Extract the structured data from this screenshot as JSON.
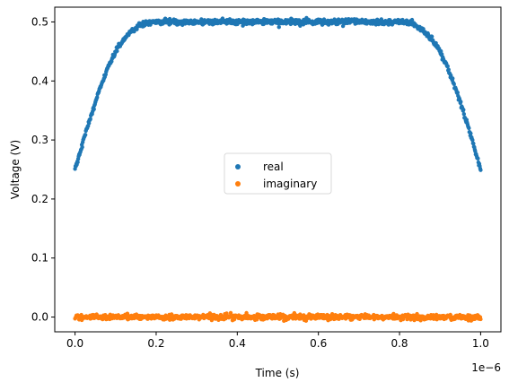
{
  "chart_data": {
    "type": "scatter",
    "title": "",
    "xlabel": "Time (s)",
    "ylabel": "Voltage (V)",
    "x_offset_label": "1e−6",
    "xlim": [
      -0.05,
      1.05
    ],
    "ylim": [
      -0.025,
      0.525
    ],
    "x_ticks": [
      {
        "value": 0.0,
        "label": "0.0"
      },
      {
        "value": 0.2,
        "label": "0.2"
      },
      {
        "value": 0.4,
        "label": "0.4"
      },
      {
        "value": 0.6,
        "label": "0.6"
      },
      {
        "value": 0.8,
        "label": "0.8"
      },
      {
        "value": 1.0,
        "label": "1.0"
      }
    ],
    "y_ticks": [
      {
        "value": 0.0,
        "label": "0.0"
      },
      {
        "value": 0.1,
        "label": "0.1"
      },
      {
        "value": 0.2,
        "label": "0.2"
      },
      {
        "value": 0.3,
        "label": "0.3"
      },
      {
        "value": 0.4,
        "label": "0.4"
      },
      {
        "value": 0.5,
        "label": "0.5"
      }
    ],
    "grid": false,
    "legend_position": "center",
    "series": [
      {
        "name": "real",
        "color": "#1f77b4",
        "x": [
          0.0,
          0.02,
          0.04,
          0.06,
          0.08,
          0.1,
          0.12,
          0.14,
          0.16,
          0.18,
          0.2,
          0.25,
          0.3,
          0.35,
          0.4,
          0.45,
          0.5,
          0.55,
          0.6,
          0.65,
          0.7,
          0.75,
          0.8,
          0.82,
          0.84,
          0.86,
          0.88,
          0.9,
          0.92,
          0.94,
          0.96,
          0.98,
          1.0
        ],
        "y": [
          0.25,
          0.298,
          0.343,
          0.384,
          0.42,
          0.45,
          0.469,
          0.485,
          0.494,
          0.499,
          0.5,
          0.5,
          0.5,
          0.5,
          0.5,
          0.5,
          0.5,
          0.5,
          0.5,
          0.5,
          0.5,
          0.5,
          0.5,
          0.499,
          0.494,
          0.485,
          0.469,
          0.45,
          0.42,
          0.384,
          0.343,
          0.298,
          0.25
        ]
      },
      {
        "name": "imaginary",
        "color": "#ff7f0e",
        "x": [
          0.0,
          0.1,
          0.2,
          0.3,
          0.4,
          0.5,
          0.6,
          0.7,
          0.8,
          0.9,
          1.0
        ],
        "y": [
          0.0,
          0.0,
          0.0,
          0.0,
          0.0,
          0.0,
          0.0,
          0.0,
          0.0,
          0.0,
          0.0
        ]
      }
    ]
  }
}
